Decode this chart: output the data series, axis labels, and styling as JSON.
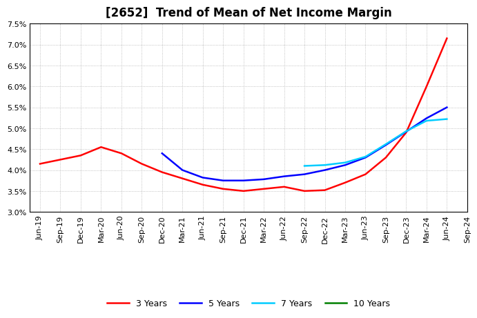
{
  "title": "[2652]  Trend of Mean of Net Income Margin",
  "ylim": [
    0.03,
    0.075
  ],
  "yticks": [
    0.03,
    0.035,
    0.04,
    0.045,
    0.05,
    0.055,
    0.06,
    0.065,
    0.07,
    0.075
  ],
  "x_labels": [
    "Jun-19",
    "Sep-19",
    "Dec-19",
    "Mar-20",
    "Jun-20",
    "Sep-20",
    "Dec-20",
    "Mar-21",
    "Jun-21",
    "Sep-21",
    "Dec-21",
    "Mar-22",
    "Jun-22",
    "Sep-22",
    "Dec-22",
    "Mar-23",
    "Jun-23",
    "Sep-23",
    "Dec-23",
    "Mar-24",
    "Jun-24",
    "Sep-24"
  ],
  "series_3y": {
    "label": "3 Years",
    "color": "#FF0000",
    "x": [
      0,
      1,
      2,
      3,
      4,
      5,
      6,
      7,
      8,
      9,
      10,
      11,
      12,
      13,
      14,
      15,
      16,
      17,
      18,
      19,
      20
    ],
    "y": [
      0.0415,
      0.0425,
      0.0435,
      0.0455,
      0.044,
      0.0415,
      0.0395,
      0.038,
      0.0365,
      0.0355,
      0.035,
      0.0355,
      0.036,
      0.035,
      0.0352,
      0.037,
      0.039,
      0.043,
      0.049,
      0.06,
      0.0715
    ]
  },
  "series_5y": {
    "label": "5 Years",
    "color": "#0000FF",
    "x": [
      6,
      7,
      8,
      9,
      10,
      11,
      12,
      13,
      14,
      15,
      16,
      17,
      18,
      19,
      20
    ],
    "y": [
      0.044,
      0.04,
      0.0382,
      0.0375,
      0.0375,
      0.0378,
      0.0385,
      0.039,
      0.04,
      0.0412,
      0.043,
      0.046,
      0.0492,
      0.0524,
      0.055
    ]
  },
  "series_7y": {
    "label": "7 Years",
    "color": "#00CCFF",
    "x": [
      13,
      14,
      15,
      16,
      17,
      18,
      19,
      20
    ],
    "y": [
      0.041,
      0.0412,
      0.0418,
      0.0432,
      0.0462,
      0.0493,
      0.0518,
      0.0522
    ]
  },
  "series_10y": {
    "label": "10 Years",
    "color": "#008000",
    "x": [],
    "y": []
  },
  "background_color": "#ffffff",
  "grid_color": "#b0b0b0",
  "title_fontsize": 12,
  "tick_fontsize": 8
}
